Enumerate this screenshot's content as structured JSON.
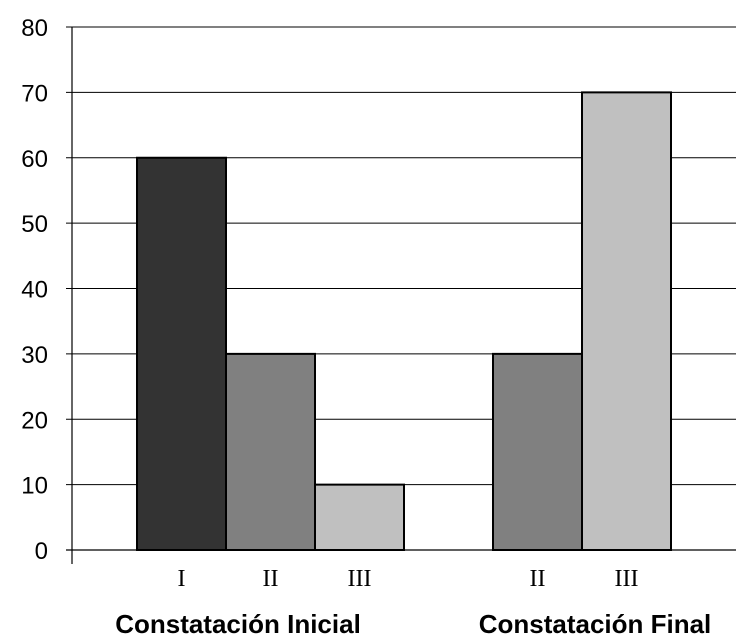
{
  "chart_data": {
    "type": "bar",
    "ylim": [
      0,
      80
    ],
    "yticks": [
      "0",
      "10",
      "20",
      "30",
      "40",
      "50",
      "60",
      "70",
      "80"
    ],
    "grid": true,
    "groups": [
      {
        "label": "Constatación Inicial",
        "bars": [
          {
            "category": "I",
            "value": 60,
            "color": "#333333"
          },
          {
            "category": "II",
            "value": 30,
            "color": "#808080"
          },
          {
            "category": "III",
            "value": 10,
            "color": "#c0c0c0"
          }
        ]
      },
      {
        "label": "Constatación Final",
        "bars": [
          {
            "category": "II",
            "value": 30,
            "color": "#808080"
          },
          {
            "category": "III",
            "value": 70,
            "color": "#c0c0c0"
          }
        ]
      }
    ]
  }
}
